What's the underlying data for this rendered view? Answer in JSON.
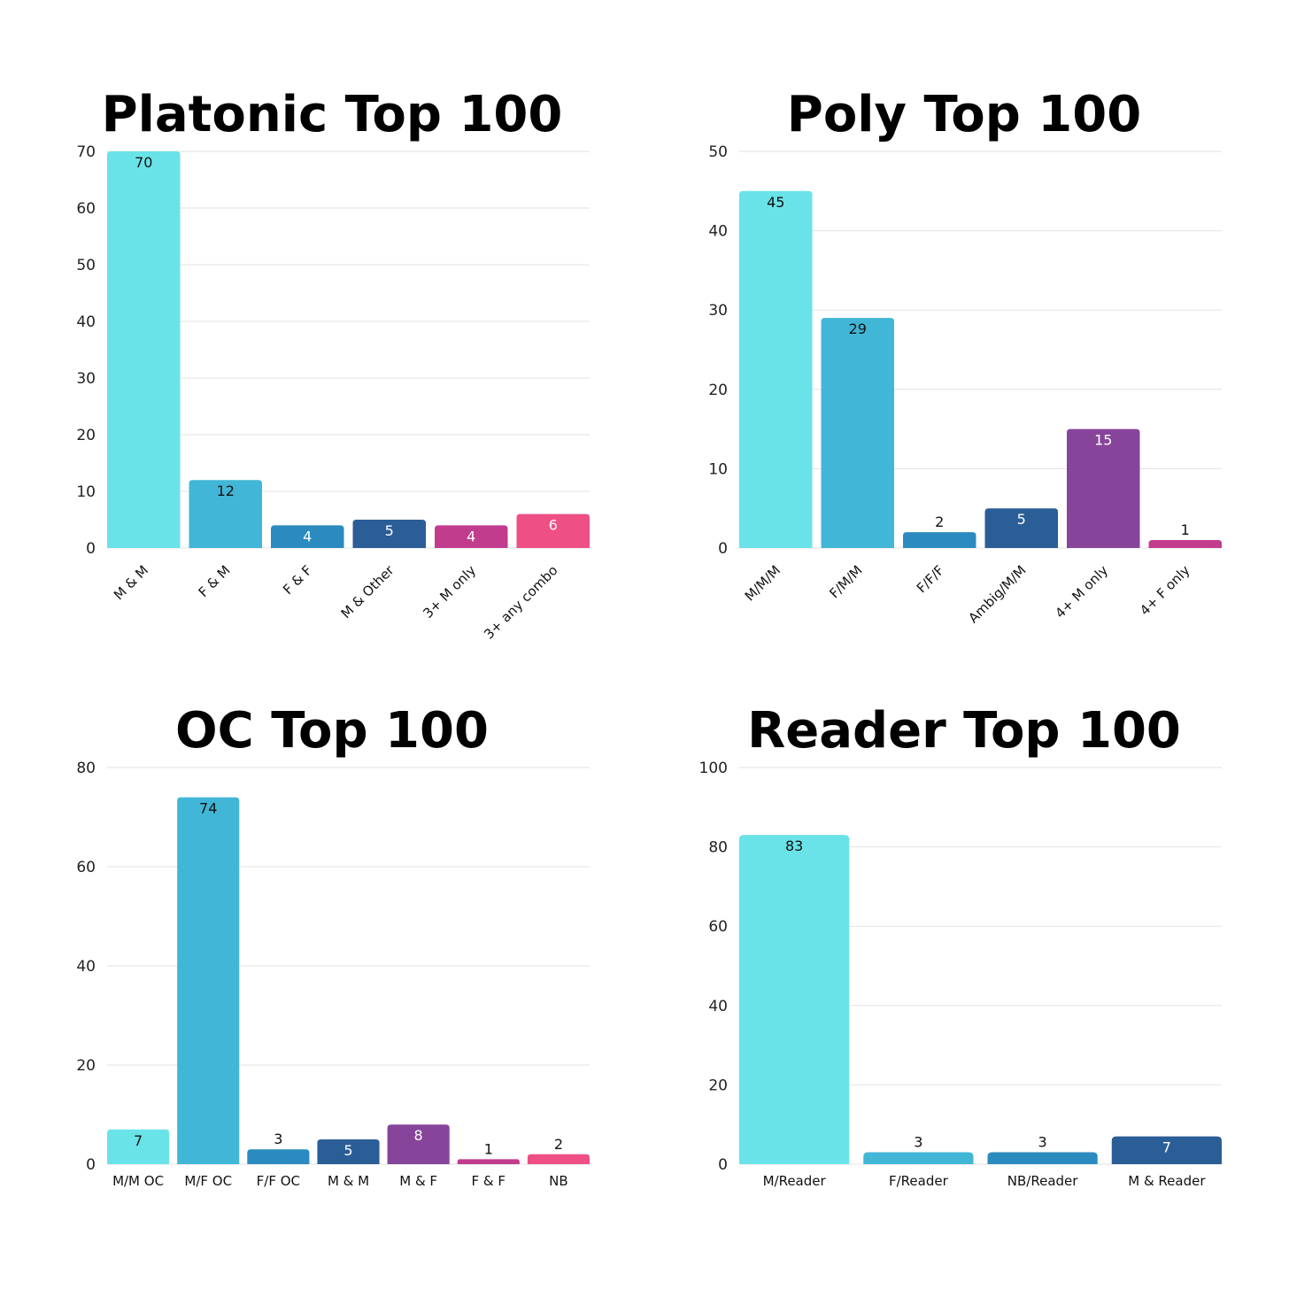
{
  "colors": {
    "cyan": "#6ae3e8",
    "sky": "#41b6d6",
    "blue": "#2b8bbf",
    "navy": "#2b5e97",
    "purple": "#86459b",
    "magenta": "#c23c8e",
    "pink": "#ee4f84"
  },
  "chart_data": [
    {
      "id": "platonic",
      "type": "bar",
      "title": "Platonic Top 100",
      "categories": [
        "M & M",
        "F & M",
        "F & F",
        "M & Other",
        "3+ M only",
        "3+ any combo"
      ],
      "values": [
        70,
        12,
        4,
        5,
        4,
        6
      ],
      "bar_colors": [
        "cyan",
        "sky",
        "blue",
        "navy",
        "magenta",
        "pink"
      ],
      "ylim": [
        0,
        70
      ],
      "yticks": [
        0,
        10,
        20,
        30,
        40,
        50,
        60,
        70
      ],
      "grid": true,
      "rotated_labels": true
    },
    {
      "id": "poly",
      "type": "bar",
      "title": "Poly Top 100",
      "categories": [
        "M/M/M",
        "F/M/M",
        "F/F/F",
        "Ambig/M/M",
        "4+ M only",
        "4+ F only"
      ],
      "values": [
        45,
        29,
        2,
        5,
        15,
        1
      ],
      "bar_colors": [
        "cyan",
        "sky",
        "blue",
        "navy",
        "purple",
        "magenta"
      ],
      "ylim": [
        0,
        50
      ],
      "yticks": [
        0,
        10,
        20,
        30,
        40,
        50
      ],
      "grid": true,
      "rotated_labels": true
    },
    {
      "id": "oc",
      "type": "bar",
      "title": "OC Top 100",
      "categories": [
        "M/M OC",
        "M/F OC",
        "F/F OC",
        "M & M",
        "M & F",
        "F & F",
        "NB"
      ],
      "values": [
        7,
        74,
        3,
        5,
        8,
        1,
        2
      ],
      "bar_colors": [
        "cyan",
        "sky",
        "blue",
        "navy",
        "purple",
        "magenta",
        "pink"
      ],
      "ylim": [
        0,
        80
      ],
      "yticks": [
        0,
        20,
        40,
        60,
        80
      ],
      "grid": true,
      "rotated_labels": false
    },
    {
      "id": "reader",
      "type": "bar",
      "title": "Reader Top 100",
      "categories": [
        "M/Reader",
        "F/Reader",
        "NB/Reader",
        "M & Reader"
      ],
      "values": [
        83,
        3,
        3,
        7
      ],
      "bar_colors": [
        "cyan",
        "sky",
        "blue",
        "navy"
      ],
      "ylim": [
        0,
        100
      ],
      "yticks": [
        0,
        20,
        40,
        60,
        80,
        100
      ],
      "grid": true,
      "rotated_labels": false
    }
  ]
}
